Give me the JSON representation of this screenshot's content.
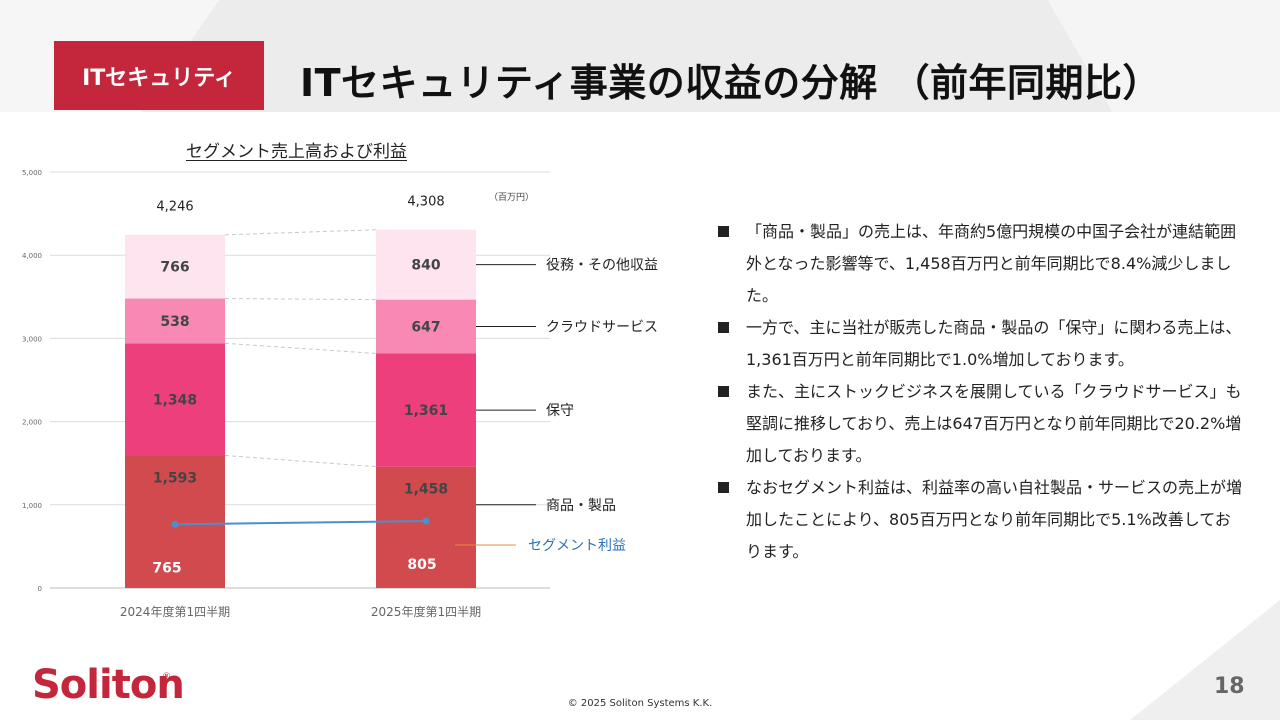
{
  "section_tag": "ITセキュリティ",
  "page_title": "ITセキュリティ事業の収益の分解 （前年同期比）",
  "chart_data": {
    "type": "bar",
    "title": "セグメント売上高および利益",
    "unit": "（百万円）",
    "categories": [
      "2024年度第1四半期",
      "2025年度第1四半期"
    ],
    "series": [
      {
        "name": "商品・製品",
        "values": [
          1593,
          1458
        ],
        "color": "#d04a4e"
      },
      {
        "name": "保守",
        "values": [
          1348,
          1361
        ],
        "color": "#ee3f7d"
      },
      {
        "name": "クラウドサービス",
        "values": [
          538,
          647
        ],
        "color": "#f889b4"
      },
      {
        "name": "役務・その他収益",
        "values": [
          766,
          840
        ],
        "color": "#fde4ee"
      }
    ],
    "totals": [
      4246,
      4308
    ],
    "segment_profit": {
      "name": "セグメント利益",
      "values": [
        765,
        805
      ],
      "color": "#4a8fce"
    },
    "ylim": [
      0,
      5000
    ],
    "yticks": [
      "0",
      "1,000",
      "2,000",
      "3,000",
      "4,000",
      "5,000"
    ],
    "grid": true,
    "legend": "right"
  },
  "bullets": [
    "「商品・製品」の売上は、年商約5億円規模の中国子会社が連結範囲外となった影響等で、1,458百万円と前年同期比で8.4%減少しました。",
    "一方で、主に当社が販売した商品・製品の「保守」に関わる売上は、1,361百万円と前年同期比で1.0%増加しております。",
    "また、主にストックビジネスを展開している「クラウドサービス」も堅調に推移しており、売上は647百万円となり前年同期比で20.2%増加しております。",
    "なおセグメント利益は、利益率の高い自社製品・サービスの売上が増加したことにより、805百万円となり前年同期比で5.1%改善しております。"
  ],
  "footer": {
    "logo": "Soliton",
    "registered": "®",
    "copyright": "© 2025 Soliton Systems K.K.",
    "page_number": "18"
  }
}
